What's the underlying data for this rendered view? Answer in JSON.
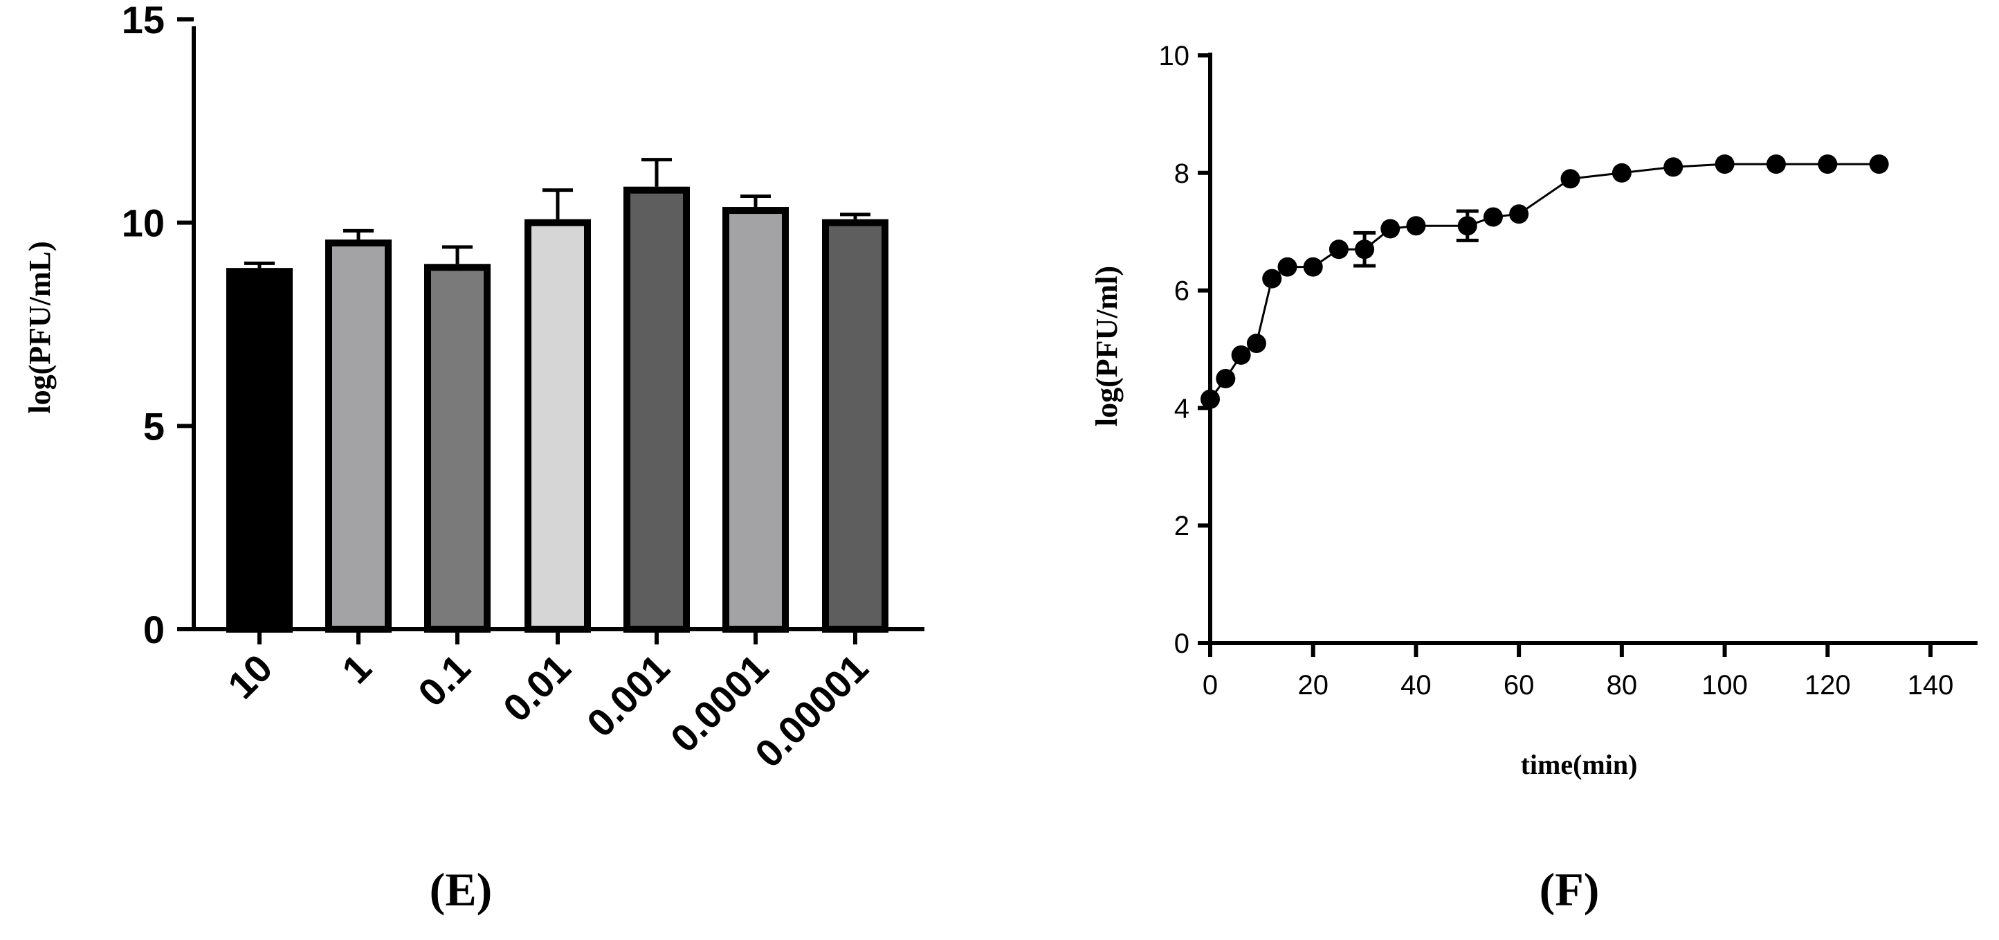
{
  "chart_data": [
    {
      "panel": "(E)",
      "type": "bar",
      "title": "",
      "xlabel": "",
      "ylabel": "log(PFU/mL)",
      "ylim": [
        0,
        15
      ],
      "yticks": [
        "0",
        "5",
        "10",
        "15"
      ],
      "categories": [
        "10",
        "1",
        "0.1",
        "0.01",
        "0.001",
        "0.0001",
        "0.00001"
      ],
      "values": [
        8.8,
        9.5,
        8.9,
        10.0,
        10.8,
        10.3,
        10.0
      ],
      "errors": [
        0.2,
        0.3,
        0.5,
        0.8,
        0.75,
        0.35,
        0.2
      ],
      "colors": [
        "#000000",
        "#a3a3a6",
        "#7a7a7a",
        "#d6d6d6",
        "#5e5e5e",
        "#a3a3a6",
        "#5e5e5e"
      ]
    },
    {
      "panel": "(F)",
      "type": "line",
      "title": "",
      "xlabel": "time(min)",
      "ylabel": "log(PFU/ml)",
      "xlim": [
        0,
        140
      ],
      "ylim": [
        0,
        10
      ],
      "xticks": [
        "0",
        "20",
        "40",
        "60",
        "80",
        "100",
        "120",
        "140"
      ],
      "yticks": [
        "0",
        "2",
        "4",
        "6",
        "8",
        "10"
      ],
      "x": [
        0,
        3,
        6,
        9,
        12,
        15,
        20,
        25,
        30,
        35,
        40,
        50,
        55,
        60,
        70,
        80,
        90,
        100,
        110,
        120,
        130
      ],
      "y": [
        4.15,
        4.5,
        4.9,
        5.1,
        6.2,
        6.4,
        6.4,
        6.7,
        6.7,
        7.05,
        7.1,
        7.1,
        7.25,
        7.3,
        7.9,
        8.0,
        8.1,
        8.15,
        8.15,
        8.15,
        8.15
      ],
      "errors": [
        0,
        0,
        0,
        0,
        0,
        0,
        0,
        0,
        0.28,
        0,
        0,
        0.25,
        0,
        0,
        0,
        0,
        0,
        0,
        0,
        0,
        0
      ]
    }
  ]
}
